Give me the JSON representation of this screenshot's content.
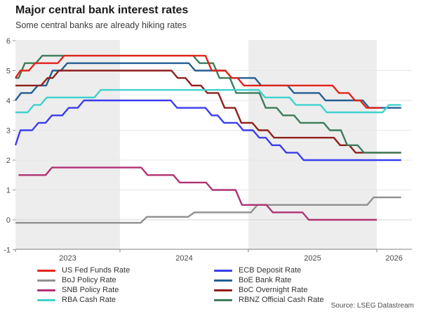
{
  "header": {
    "title": "Major central bank interest rates",
    "subtitle": "Some central banks are already hiking rates"
  },
  "source_label": "Source: LSEG Datastream",
  "chart_data": {
    "type": "line",
    "step": true,
    "title": "Major central bank interest rates",
    "subtitle": "Some central banks are already hiking rates",
    "ylim": [
      -1,
      6
    ],
    "xlim": [
      2023.186,
      2026.27
    ],
    "y_ticks": [
      6,
      5,
      4,
      3,
      2,
      1,
      0,
      -1
    ],
    "y_gridlines": [
      5,
      4,
      3,
      2,
      1,
      0
    ],
    "x_ticks": [
      2023.186,
      2024,
      2025,
      2026
    ],
    "x_labels": [
      {
        "pos": 2023.593,
        "label": "2023"
      },
      {
        "pos": 2024.5,
        "label": "2024"
      },
      {
        "pos": 2025.5,
        "label": "2025"
      },
      {
        "pos": 2026.135,
        "label": "2026"
      }
    ],
    "bands": [
      {
        "from": 2023.186,
        "to": 2024.0,
        "shaded": true
      },
      {
        "from": 2024.0,
        "to": 2025.0,
        "shaded": false
      },
      {
        "from": 2025.0,
        "to": 2026.0,
        "shaded": true
      },
      {
        "from": 2026.0,
        "to": 2026.27,
        "shaded": false
      }
    ],
    "band_color": "#ededed",
    "legend_position": "bottom",
    "legend_columns": [
      [
        "fed",
        "boj",
        "snb",
        "rba"
      ],
      [
        "ecb",
        "boe",
        "boc",
        "rbnz"
      ]
    ],
    "draw_order": [
      "boe",
      "boc",
      "rbnz",
      "ecb",
      "boj",
      "snb",
      "rba",
      "fed"
    ],
    "series": {
      "fed": {
        "label": "US Fed Funds Rate",
        "color": "#e2231a",
        "end": 2026.03,
        "points": [
          [
            2023.186,
            4.75
          ],
          [
            2023.225,
            5.0
          ],
          [
            2023.34,
            5.25
          ],
          [
            2023.565,
            5.5
          ],
          [
            2024.715,
            5.0
          ],
          [
            2024.87,
            4.75
          ],
          [
            2024.965,
            4.5
          ],
          [
            2025.705,
            4.25
          ],
          [
            2025.83,
            4.0
          ],
          [
            2025.92,
            3.75
          ]
        ]
      },
      "boj": {
        "label": "BoJ Policy Rate",
        "color": "#8f8f8f",
        "end": 2026.19,
        "points": [
          [
            2023.186,
            -0.1
          ],
          [
            2024.21,
            0.1
          ],
          [
            2024.58,
            0.25
          ],
          [
            2025.07,
            0.5
          ],
          [
            2025.975,
            0.75
          ]
        ]
      },
      "snb": {
        "label": "SNB Policy Rate",
        "color": "#b03273",
        "end": 2026.0,
        "points": [
          [
            2023.21,
            1.5
          ],
          [
            2023.47,
            1.75
          ],
          [
            2024.215,
            1.5
          ],
          [
            2024.465,
            1.25
          ],
          [
            2024.72,
            1.0
          ],
          [
            2024.95,
            0.5
          ],
          [
            2025.19,
            0.25
          ],
          [
            2025.47,
            0.0
          ]
        ]
      },
      "rba": {
        "label": "RBA Cash Rate",
        "color": "#3ed2cc",
        "end": 2026.19,
        "points": [
          [
            2023.186,
            3.6
          ],
          [
            2023.33,
            3.85
          ],
          [
            2023.43,
            4.1
          ],
          [
            2023.85,
            4.35
          ],
          [
            2025.13,
            4.1
          ],
          [
            2025.37,
            3.85
          ],
          [
            2025.61,
            3.6
          ],
          [
            2026.095,
            3.85
          ]
        ]
      },
      "ecb": {
        "label": "ECB Deposit Rate",
        "color": "#3a3cf0",
        "end": 2026.19,
        "points": [
          [
            2023.186,
            2.5
          ],
          [
            2023.225,
            3.0
          ],
          [
            2023.365,
            3.25
          ],
          [
            2023.47,
            3.5
          ],
          [
            2023.6,
            3.75
          ],
          [
            2023.72,
            4.0
          ],
          [
            2024.445,
            3.75
          ],
          [
            2024.715,
            3.5
          ],
          [
            2024.81,
            3.25
          ],
          [
            2024.96,
            3.0
          ],
          [
            2025.085,
            2.75
          ],
          [
            2025.185,
            2.5
          ],
          [
            2025.295,
            2.25
          ],
          [
            2025.43,
            2.0
          ]
        ]
      },
      "boe": {
        "label": "BoE Bank Rate",
        "color": "#235e92",
        "end": 2026.19,
        "points": [
          [
            2023.186,
            4.0
          ],
          [
            2023.23,
            4.25
          ],
          [
            2023.36,
            4.5
          ],
          [
            2023.475,
            5.0
          ],
          [
            2023.59,
            5.25
          ],
          [
            2024.585,
            5.0
          ],
          [
            2024.87,
            4.75
          ],
          [
            2025.1,
            4.5
          ],
          [
            2025.355,
            4.25
          ],
          [
            2025.6,
            4.0
          ],
          [
            2025.94,
            3.75
          ]
        ]
      },
      "boc": {
        "label": "BoC Overnight Rate",
        "color": "#8e1f1b",
        "end": 2026.19,
        "points": [
          [
            2023.186,
            4.5
          ],
          [
            2023.435,
            4.75
          ],
          [
            2023.525,
            5.0
          ],
          [
            2024.45,
            4.75
          ],
          [
            2024.56,
            4.5
          ],
          [
            2024.68,
            4.25
          ],
          [
            2024.815,
            3.75
          ],
          [
            2024.945,
            3.25
          ],
          [
            2025.08,
            3.0
          ],
          [
            2025.2,
            2.75
          ],
          [
            2025.715,
            2.5
          ],
          [
            2025.835,
            2.25
          ]
        ]
      },
      "rbnz": {
        "label": "RBNZ Official Cash Rate",
        "color": "#3d7c59",
        "end": 2026.19,
        "points": [
          [
            2023.186,
            4.75
          ],
          [
            2023.26,
            5.25
          ],
          [
            2023.395,
            5.5
          ],
          [
            2024.62,
            5.25
          ],
          [
            2024.775,
            4.75
          ],
          [
            2024.905,
            4.25
          ],
          [
            2025.135,
            3.75
          ],
          [
            2025.27,
            3.5
          ],
          [
            2025.405,
            3.25
          ],
          [
            2025.635,
            3.0
          ],
          [
            2025.77,
            2.5
          ],
          [
            2025.9,
            2.25
          ]
        ]
      }
    }
  }
}
